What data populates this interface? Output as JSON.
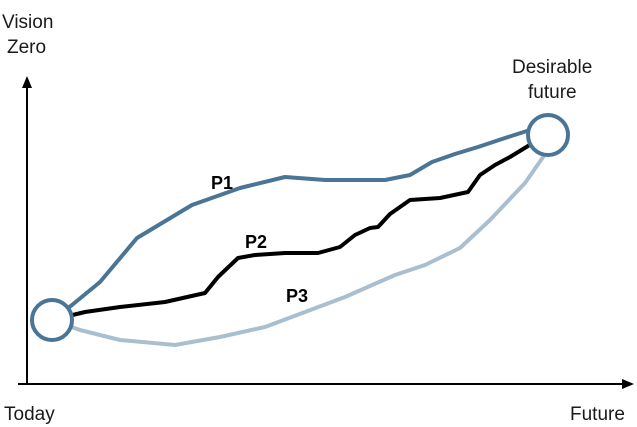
{
  "axes": {
    "y_label_line1": "Vision",
    "y_label_line2": "Zero",
    "x_start_label": "Today",
    "x_end_label": "Future"
  },
  "endpoints": {
    "end_label_line1": "Desirable",
    "end_label_line2": "future"
  },
  "paths": [
    {
      "label": "P1",
      "color": "#4a7596"
    },
    {
      "label": "P2",
      "color": "#000000"
    },
    {
      "label": "P3",
      "color": "#a9bfcf"
    }
  ],
  "colors": {
    "axis": "#000000",
    "node_stroke": "#4a7596",
    "node_fill": "#ffffff"
  }
}
